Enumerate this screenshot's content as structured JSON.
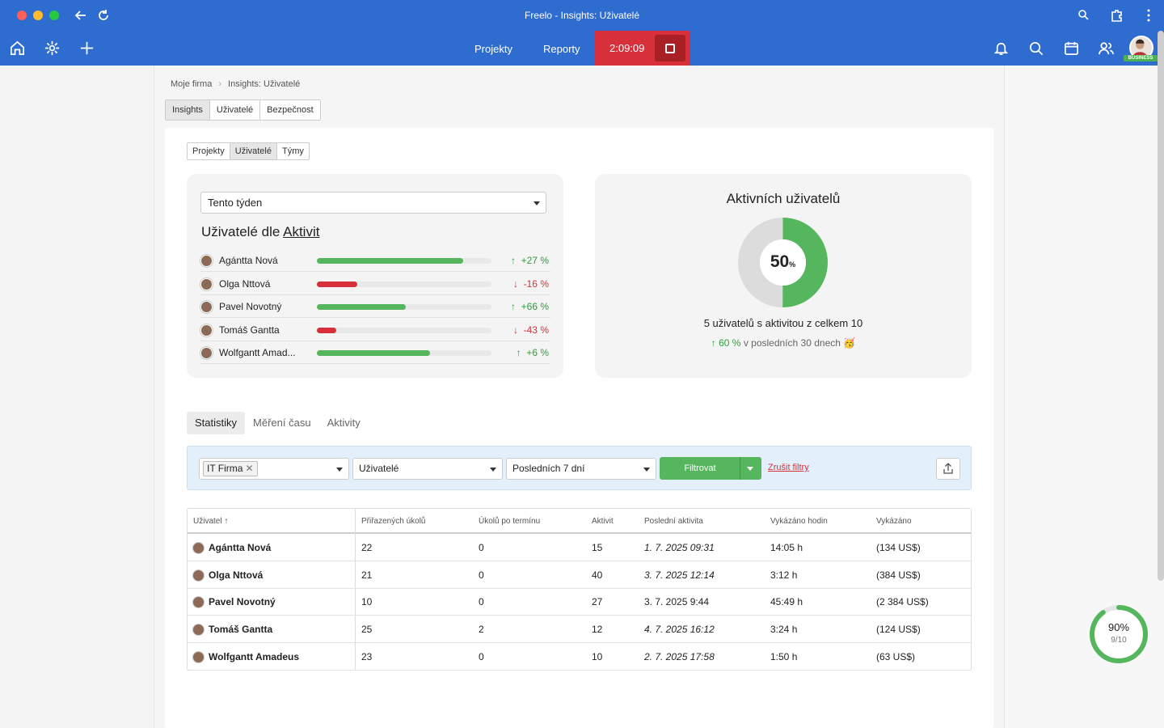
{
  "window": {
    "title": "Freelo - Insights: Uživatelé"
  },
  "nav": {
    "projects": "Projekty",
    "reports": "Reporty",
    "timer": "2:09:09",
    "badge": "BUSINESS"
  },
  "breadcrumb": {
    "root": "Moje firma",
    "current": "Insights: Uživatelé"
  },
  "tabs1": [
    "Insights",
    "Uživatelé",
    "Bezpečnost"
  ],
  "tabs2": [
    "Projekty",
    "Uživatelé",
    "Týmy"
  ],
  "activity_panel": {
    "period": "Tento týden",
    "title_prefix": "Uživatelé dle",
    "title_link": "Aktivit",
    "users": [
      {
        "name": "Agántta Nová",
        "level": 0.84,
        "delta": "+27 %",
        "dir": "up"
      },
      {
        "name": "Olga Nttová",
        "level": 0.23,
        "delta": "-16 %",
        "dir": "down"
      },
      {
        "name": "Pavel Novotný",
        "level": 0.51,
        "delta": "+66 %",
        "dir": "up"
      },
      {
        "name": "Tomáš Gantta",
        "level": 0.11,
        "delta": "-43 %",
        "dir": "down"
      },
      {
        "name": "Wolfgantt Amad...",
        "level": 0.65,
        "delta": "+6 %",
        "dir": "up"
      }
    ]
  },
  "active_panel": {
    "title": "Aktivních uživatelů",
    "percent": "50",
    "percent_unit": "%",
    "value": 0.5,
    "summary": "5 uživatelů s aktivitou z celkem 10",
    "trend_value": "60 %",
    "trend_text": "v posledních 30 dnech 🥳"
  },
  "stats_tabs": [
    "Statistiky",
    "Měření času",
    "Aktivity"
  ],
  "filters": {
    "company_chip": "IT Firma",
    "users": "Uživatelé",
    "period": "Posledních 7 dní",
    "filter_btn": "Filtrovat",
    "clear": "Zrušit filtry"
  },
  "table": {
    "headers": [
      "Uživatel ↑",
      "Přiřazených úkolů",
      "Úkolů po termínu",
      "Aktivit",
      "Poslední aktivita",
      "Vykázáno hodin",
      "Vykázáno"
    ],
    "rows": [
      [
        "Agántta Nová",
        "22",
        "0",
        "15",
        "1. 7. 2025 09:31",
        "14:05 h",
        "(134 US$)"
      ],
      [
        "Olga Nttová",
        "21",
        "0",
        "40",
        "3. 7. 2025 12:14",
        "3:12 h",
        "(384 US$)"
      ],
      [
        "Pavel Novotný",
        "10",
        "0",
        "27",
        "3. 7. 2025 9:44",
        "45:49 h",
        "(2 384 US$)"
      ],
      [
        "Tomáš Gantta",
        "25",
        "2",
        "12",
        "4. 7. 2025 16:12",
        "3:24 h",
        "(124 US$)"
      ],
      [
        "Wolfgantt Amadeus",
        "23",
        "0",
        "10",
        "2. 7. 2025 17:58",
        "1:50 h",
        "(63 US$)"
      ]
    ]
  },
  "progress_badge": {
    "percent": "90%",
    "count": "9/10",
    "value": 0.9
  },
  "colors": {
    "brand": "#2f6ccf",
    "timer": "#d7303a",
    "green": "#56b65e",
    "red": "#d8303a"
  }
}
